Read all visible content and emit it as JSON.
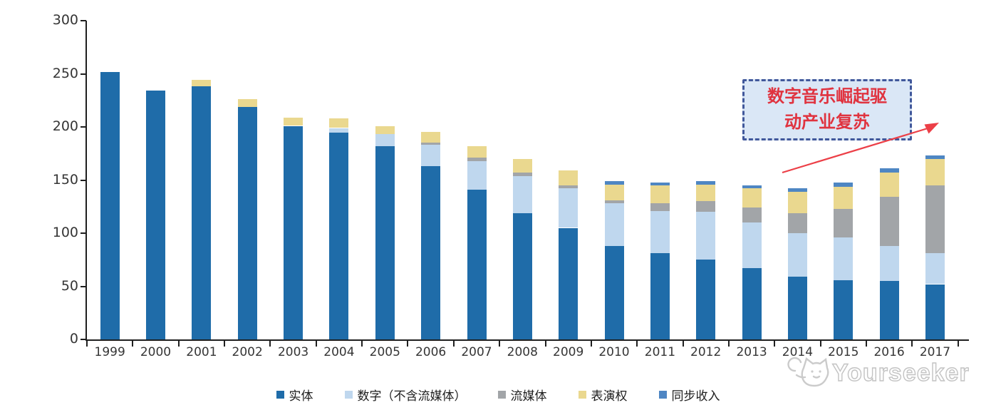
{
  "watermark": {
    "text": "Yourseeker"
  },
  "annotation": {
    "lines": [
      "数字音乐崛起驱",
      "动产业复苏"
    ],
    "text_color": "#E0333F",
    "box_fill": "#DAE7F6",
    "box_border_color": "#41589B",
    "arrow_color": "#EC3F47"
  },
  "chart_data": {
    "type": "bar",
    "stacked": true,
    "title": "",
    "xlabel": "",
    "ylabel": "",
    "ylim": [
      0,
      300
    ],
    "yticks": [
      0,
      50,
      100,
      150,
      200,
      250,
      300
    ],
    "grid": false,
    "legend_position": "bottom",
    "categories": [
      "1999",
      "2000",
      "2001",
      "2002",
      "2003",
      "2004",
      "2005",
      "2006",
      "2007",
      "2008",
      "2009",
      "2010",
      "2011",
      "2012",
      "2013",
      "2014",
      "2015",
      "2016",
      "2017"
    ],
    "series": [
      {
        "key": "physical",
        "name": "实体",
        "color": "#1F6CA9",
        "values": [
          252,
          234,
          238,
          219,
          201,
          195,
          182,
          163,
          141,
          119,
          105,
          88,
          81,
          75,
          67,
          59,
          56,
          55,
          52
        ]
      },
      {
        "key": "digital",
        "name": "数字（不含流媒体）",
        "color": "#BFD7EE",
        "values": [
          0,
          0,
          0,
          0,
          0,
          4,
          11,
          20,
          27,
          35,
          37,
          40,
          40,
          45,
          43,
          41,
          40,
          33,
          29
        ]
      },
      {
        "key": "streaming",
        "name": "流媒体",
        "color": "#A2A5A8",
        "values": [
          0,
          0,
          0,
          0,
          0,
          0,
          0,
          2,
          3,
          3,
          3,
          3,
          7,
          10,
          14,
          19,
          27,
          46,
          64
        ]
      },
      {
        "key": "performance",
        "name": "表演权",
        "color": "#EAD88F",
        "values": [
          0,
          0,
          6,
          7,
          8,
          9,
          8,
          10,
          11,
          13,
          14,
          15,
          17,
          16,
          18,
          20,
          21,
          23,
          25
        ]
      },
      {
        "key": "sync",
        "name": "同步收入",
        "color": "#4E86C3",
        "values": [
          0,
          0,
          0,
          0,
          0,
          0,
          0,
          0,
          0,
          0,
          0,
          3,
          3,
          3,
          3,
          3,
          4,
          4,
          3
        ]
      }
    ]
  }
}
